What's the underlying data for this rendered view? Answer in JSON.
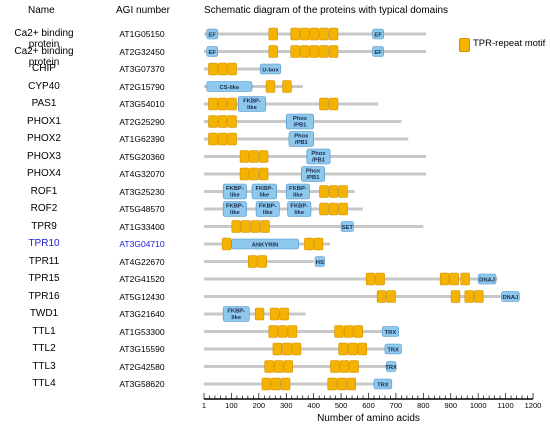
{
  "headers": {
    "name": "Name",
    "agi": "AGI number",
    "schematic": "Schematic diagram of the proteins with typical domains"
  },
  "legend": {
    "label": "TPR-repeat motif",
    "color": "#f5b301"
  },
  "colors": {
    "tpr": "#f5b301",
    "tpr_border": "#d38f00",
    "domain": "#8ec8ec",
    "domain_border": "#4a90c8",
    "backbone": "#c8c8c8",
    "highlight": "#1a1ad8"
  },
  "axis": {
    "label": "Number of amino acids",
    "ticks": [
      "1",
      "100",
      "200",
      "300",
      "400",
      "500",
      "600",
      "700",
      "800",
      "900",
      "1000",
      "1100",
      "1200"
    ],
    "range": [
      1,
      1200
    ]
  },
  "proteins": [
    {
      "name": "Ca2+ binding protein",
      "agi": "AT1G05150",
      "length": 810,
      "tpr": [
        [
          235,
          270
        ],
        [
          315,
          350
        ],
        [
          350,
          385
        ],
        [
          385,
          420
        ],
        [
          420,
          455
        ],
        [
          455,
          490
        ]
      ],
      "domains": [
        {
          "label": "EF",
          "start": 10,
          "end": 50
        },
        {
          "label": "EF",
          "start": 615,
          "end": 655
        }
      ]
    },
    {
      "name": "Ca2+ binding protein",
      "agi": "AT2G32450",
      "length": 810,
      "tpr": [
        [
          235,
          270
        ],
        [
          315,
          350
        ],
        [
          350,
          385
        ],
        [
          385,
          420
        ],
        [
          420,
          455
        ],
        [
          455,
          490
        ]
      ],
      "domains": [
        {
          "label": "EF",
          "start": 10,
          "end": 50
        },
        {
          "label": "EF",
          "start": 615,
          "end": 655
        }
      ]
    },
    {
      "name": "CHIP",
      "agi": "AT3G07370",
      "length": 280,
      "tpr": [
        [
          15,
          50
        ],
        [
          50,
          85
        ],
        [
          85,
          120
        ]
      ],
      "domains": [
        {
          "label": "U-box",
          "start": 205,
          "end": 280
        }
      ]
    },
    {
      "name": "CYP40",
      "agi": "AT2G15790",
      "length": 360,
      "tpr": [
        [
          225,
          260
        ],
        [
          285,
          320
        ]
      ],
      "domains": [
        {
          "label": "CS-like",
          "start": 10,
          "end": 175
        }
      ]
    },
    {
      "name": "PAS1",
      "agi": "AT3G54010",
      "length": 635,
      "tpr": [
        [
          15,
          50
        ],
        [
          50,
          85
        ],
        [
          85,
          120
        ],
        [
          420,
          455
        ],
        [
          455,
          490
        ]
      ],
      "domains": [
        {
          "label": "FKBP-\nlike",
          "start": 125,
          "end": 225
        }
      ]
    },
    {
      "name": "PHOX1",
      "agi": "AT2G25290",
      "length": 720,
      "tpr": [
        [
          15,
          50
        ],
        [
          50,
          85
        ],
        [
          85,
          120
        ]
      ],
      "domains": [
        {
          "label": "Phox\n/PB1",
          "start": 300,
          "end": 400
        }
      ]
    },
    {
      "name": "PHOX2",
      "agi": "AT1G62390",
      "length": 745,
      "tpr": [
        [
          15,
          50
        ],
        [
          50,
          85
        ],
        [
          85,
          120
        ]
      ],
      "domains": [
        {
          "label": "Phox\n/PB1",
          "start": 310,
          "end": 400
        }
      ]
    },
    {
      "name": "PHOX3",
      "agi": "AT5G20360",
      "length": 810,
      "tpr": [
        [
          130,
          165
        ],
        [
          165,
          200
        ],
        [
          200,
          235
        ]
      ],
      "domains": [
        {
          "label": "Phox\n/PB1",
          "start": 375,
          "end": 460
        }
      ]
    },
    {
      "name": "PHOX4",
      "agi": "AT4G32070",
      "length": 810,
      "tpr": [
        [
          130,
          165
        ],
        [
          165,
          200
        ],
        [
          200,
          235
        ]
      ],
      "domains": [
        {
          "label": "Phox\n/PB1",
          "start": 355,
          "end": 440
        }
      ]
    },
    {
      "name": "ROF1",
      "agi": "AT3G25230",
      "length": 550,
      "tpr": [
        [
          420,
          455
        ],
        [
          455,
          490
        ],
        [
          490,
          525
        ]
      ],
      "domains": [
        {
          "label": "FKBP-\nlike",
          "start": 70,
          "end": 155
        },
        {
          "label": "FKBP-\nlike",
          "start": 175,
          "end": 265
        },
        {
          "label": "FKBP-\nlike",
          "start": 300,
          "end": 385
        }
      ]
    },
    {
      "name": "ROF2",
      "agi": "AT5G48570",
      "length": 580,
      "tpr": [
        [
          420,
          455
        ],
        [
          455,
          490
        ],
        [
          490,
          525
        ]
      ],
      "domains": [
        {
          "label": "FKBP-\nlike",
          "start": 70,
          "end": 155
        },
        {
          "label": "FKBP-\nlike",
          "start": 190,
          "end": 275
        },
        {
          "label": "FKBP-\nlike",
          "start": 305,
          "end": 390
        }
      ]
    },
    {
      "name": "TPR9",
      "agi": "AT1G33400",
      "length": 800,
      "tpr": [
        [
          100,
          135
        ],
        [
          135,
          170
        ],
        [
          170,
          205
        ],
        [
          205,
          240
        ]
      ],
      "domains": [
        {
          "label": "SET",
          "start": 500,
          "end": 545
        }
      ]
    },
    {
      "name": "TPR10",
      "agi": "AT3G04710",
      "length": 460,
      "highlight": true,
      "tpr": [
        [
          65,
          100
        ],
        [
          365,
          400
        ],
        [
          400,
          435
        ]
      ],
      "domains": [
        {
          "label": "ANKYRIN",
          "start": 100,
          "end": 345
        }
      ]
    },
    {
      "name": "TPR11",
      "agi": "AT4G22670",
      "length": 400,
      "tpr": [
        [
          160,
          195
        ],
        [
          195,
          230
        ]
      ],
      "domains": [
        {
          "label": "HS",
          "start": 405,
          "end": 440
        }
      ]
    },
    {
      "name": "TPR15",
      "agi": "AT2G41520",
      "length": 1070,
      "tpr": [
        [
          590,
          625
        ],
        [
          625,
          660
        ],
        [
          860,
          895
        ],
        [
          895,
          930
        ],
        [
          935,
          970
        ]
      ],
      "domains": [
        {
          "label": "DNAJ",
          "start": 1000,
          "end": 1065
        }
      ]
    },
    {
      "name": "TPR16",
      "agi": "AT5G12430",
      "length": 1150,
      "tpr": [
        [
          630,
          665
        ],
        [
          665,
          700
        ],
        [
          900,
          935
        ],
        [
          950,
          985
        ],
        [
          985,
          1020
        ]
      ],
      "domains": [
        {
          "label": "DNAJ",
          "start": 1085,
          "end": 1150
        }
      ]
    },
    {
      "name": "TWD1",
      "agi": "AT3G21640",
      "length": 370,
      "tpr": [
        [
          185,
          220
        ],
        [
          240,
          275
        ],
        [
          275,
          310
        ]
      ],
      "domains": [
        {
          "label": "FKBP-\nlike",
          "start": 70,
          "end": 165
        }
      ]
    },
    {
      "name": "TTL1",
      "agi": "AT1G53300",
      "length": 690,
      "tpr": [
        [
          235,
          270
        ],
        [
          270,
          305
        ],
        [
          305,
          340
        ],
        [
          475,
          510
        ],
        [
          510,
          545
        ],
        [
          545,
          580
        ]
      ],
      "domains": [
        {
          "label": "TRX",
          "start": 650,
          "end": 710
        }
      ]
    },
    {
      "name": "TTL2",
      "agi": "AT3G15590",
      "length": 700,
      "tpr": [
        [
          250,
          285
        ],
        [
          285,
          320
        ],
        [
          320,
          355
        ],
        [
          490,
          525
        ],
        [
          525,
          560
        ],
        [
          560,
          595
        ]
      ],
      "domains": [
        {
          "label": "TRX",
          "start": 660,
          "end": 720
        }
      ]
    },
    {
      "name": "TTL3",
      "agi": "AT2G42580",
      "length": 690,
      "tpr": [
        [
          220,
          255
        ],
        [
          255,
          290
        ],
        [
          290,
          325
        ],
        [
          460,
          495
        ],
        [
          495,
          530
        ],
        [
          530,
          565
        ]
      ],
      "domains": [
        {
          "label": "TRX",
          "start": 665,
          "end": 700
        }
      ]
    },
    {
      "name": "TTL4",
      "agi": "AT3G58620",
      "length": 680,
      "tpr": [
        [
          210,
          245
        ],
        [
          245,
          280
        ],
        [
          280,
          315
        ],
        [
          450,
          485
        ],
        [
          485,
          520
        ],
        [
          520,
          555
        ]
      ],
      "domains": [
        {
          "label": "TRX",
          "start": 620,
          "end": 685
        }
      ]
    }
  ]
}
